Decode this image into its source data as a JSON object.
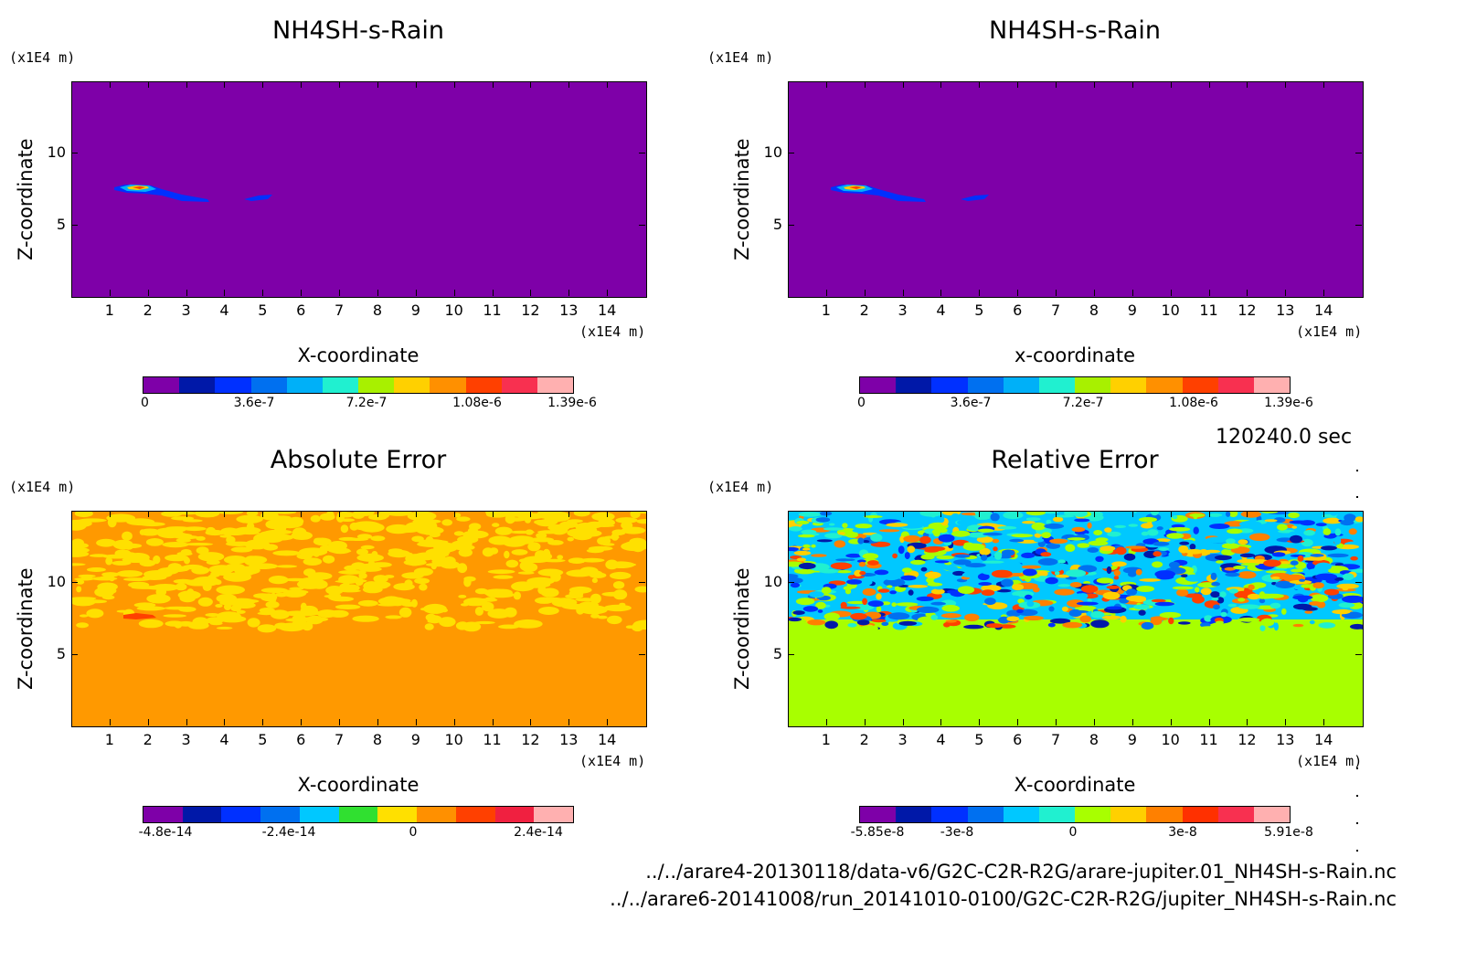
{
  "figure": {
    "time_label": "120240.0 sec",
    "files": [
      "../../arare4-20130118/data-v6/G2C-C2R-R2G/arare-jupiter.01_NH4SH-s-Rain.nc",
      "../../arare6-20141008/run_20141010-0100/G2C-C2R-R2G/jupiter_NH4SH-s-Rain.nc"
    ]
  },
  "chart_data": [
    {
      "type": "heatmap",
      "title": "NH4SH-s-Rain",
      "xlabel": "X-coordinate",
      "ylabel": "Z-coordinate",
      "x_unit": "(x1E4 m)",
      "y_unit": "(x1E4 m)",
      "xlim": [
        0,
        15
      ],
      "ylim": [
        0,
        15
      ],
      "x_ticks": [
        "1",
        "2",
        "3",
        "4",
        "5",
        "6",
        "7",
        "8",
        "9",
        "10",
        "11",
        "12",
        "13",
        "14"
      ],
      "y_ticks": [
        "5",
        "10"
      ],
      "background_color": "#7e00a8",
      "colorbar": {
        "colors": [
          "#7e00a8",
          "#0018a8",
          "#0030ff",
          "#0070f0",
          "#00b0f8",
          "#20f0d0",
          "#a8f000",
          "#ffd000",
          "#ff9000",
          "#ff4000",
          "#f83050",
          "#ffb0b0"
        ],
        "tick_labels": [
          "0",
          "3.6e-7",
          "7.2e-7",
          "1.08e-6",
          "1.39e-6"
        ]
      }
    },
    {
      "type": "heatmap",
      "title": "NH4SH-s-Rain",
      "xlabel": "x-coordinate",
      "ylabel": "Z-coordinate",
      "x_unit": "(x1E4 m)",
      "y_unit": "(x1E4 m)",
      "xlim": [
        0,
        15
      ],
      "ylim": [
        0,
        15
      ],
      "x_ticks": [
        "1",
        "2",
        "3",
        "4",
        "5",
        "6",
        "7",
        "8",
        "9",
        "10",
        "11",
        "12",
        "13",
        "14"
      ],
      "y_ticks": [
        "5",
        "10"
      ],
      "background_color": "#7e00a8",
      "colorbar": {
        "colors": [
          "#7e00a8",
          "#0018a8",
          "#0030ff",
          "#0070f0",
          "#00b0f8",
          "#20f0d0",
          "#a8f000",
          "#ffd000",
          "#ff9000",
          "#ff4000",
          "#f83050",
          "#ffb0b0"
        ],
        "tick_labels": [
          "0",
          "3.6e-7",
          "7.2e-7",
          "1.08e-6",
          "1.39e-6"
        ]
      }
    },
    {
      "type": "heatmap",
      "title": "Absolute Error",
      "xlabel": "X-coordinate",
      "ylabel": "Z-coordinate",
      "x_unit": "(x1E4 m)",
      "y_unit": "(x1E4 m)",
      "xlim": [
        0,
        15
      ],
      "ylim": [
        0,
        15
      ],
      "x_ticks": [
        "1",
        "2",
        "3",
        "4",
        "5",
        "6",
        "7",
        "8",
        "9",
        "10",
        "11",
        "12",
        "13",
        "14"
      ],
      "y_ticks": [
        "5",
        "10"
      ],
      "background_color": "#ff9900",
      "colorbar": {
        "colors": [
          "#7e00a8",
          "#0018a8",
          "#0030ff",
          "#0070f0",
          "#00c8ff",
          "#30e030",
          "#ffe000",
          "#ff9000",
          "#ff4000",
          "#f02040",
          "#ffb0b0"
        ],
        "tick_labels": [
          "-4.8e-14",
          "-2.4e-14",
          "0",
          "2.4e-14"
        ]
      }
    },
    {
      "type": "heatmap",
      "title": "Relative Error",
      "xlabel": "X-coordinate",
      "ylabel": "Z-coordinate",
      "x_unit": "(x1E4 m)",
      "y_unit": "(x1E4 m)",
      "xlim": [
        0,
        15
      ],
      "ylim": [
        0,
        15
      ],
      "x_ticks": [
        "1",
        "2",
        "3",
        "4",
        "5",
        "6",
        "7",
        "8",
        "9",
        "10",
        "11",
        "12",
        "13",
        "14"
      ],
      "y_ticks": [
        "5",
        "10"
      ],
      "background_color": "#a8ff00",
      "colorbar": {
        "colors": [
          "#7e00a8",
          "#0018a8",
          "#0030ff",
          "#0070f0",
          "#00c8ff",
          "#20f0d0",
          "#a8ff00",
          "#ffd000",
          "#ff8000",
          "#ff3000",
          "#f83050",
          "#ffb0b0"
        ],
        "tick_labels": [
          "-5.85e-8",
          "-3e-8",
          "0",
          "3e-8",
          "5.91e-8"
        ]
      }
    }
  ]
}
